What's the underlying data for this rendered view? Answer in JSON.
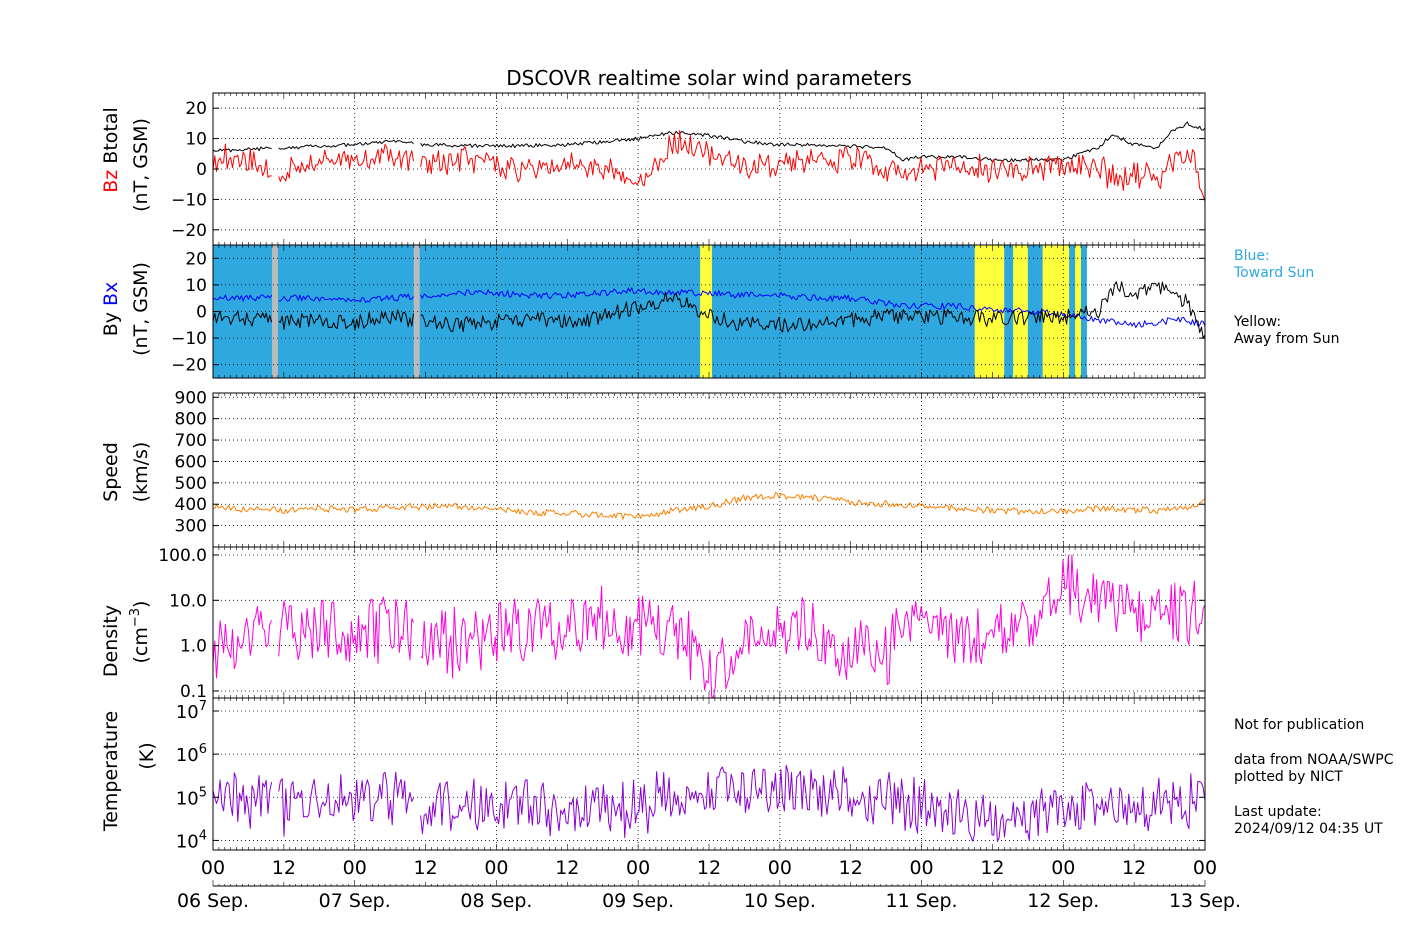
{
  "title": "DSCOVR realtime solar wind parameters",
  "panels": {
    "mag": {
      "label_b": "Btotal",
      "label_a": "Bz",
      "units": "(nT, GSM)"
    },
    "bxy": {
      "label_b": "Bx",
      "label_a": "By",
      "units": "(nT, GSM)"
    },
    "speed": {
      "label": "Speed",
      "units": "(km/s)"
    },
    "density": {
      "label": "Density",
      "units_pre": "(cm",
      "units_sup": "−3",
      "units_post": ")"
    },
    "temp": {
      "label": "Temperature",
      "units": "(K)"
    }
  },
  "legend": {
    "blue_title": "Blue:",
    "blue_text": "Toward Sun",
    "yellow_title": "Yellow:",
    "yellow_text": "Away from Sun"
  },
  "notes": {
    "not_pub": "Not for publication",
    "source1": "data from NOAA/SWPC",
    "source2": "plotted by NICT",
    "update_label": "Last update:",
    "update_value": "2024/09/12 04:35 UT"
  },
  "chart_data": [
    {
      "type": "line",
      "panel": "mag",
      "xlim": [
        0,
        168
      ],
      "ylim": [
        -25,
        25
      ],
      "yticks": [
        -20,
        -10,
        0,
        10,
        20
      ],
      "grid": true,
      "series": [
        {
          "name": "Btotal",
          "color": "#000000",
          "x": [
            0,
            6,
            12,
            18,
            24,
            30,
            36,
            48,
            60,
            66,
            72,
            78,
            84,
            90,
            96,
            102,
            108,
            114,
            117,
            120,
            126,
            132,
            138,
            144,
            150,
            152,
            154,
            156,
            160,
            162,
            165,
            168
          ],
          "y": [
            6,
            6.5,
            7,
            7.5,
            8,
            9,
            8,
            7.5,
            8,
            9,
            10,
            12,
            11,
            9,
            8,
            8,
            7.5,
            7,
            3,
            4,
            4,
            3,
            3,
            3,
            7,
            11,
            10,
            8,
            7,
            12,
            15,
            13
          ]
        },
        {
          "name": "Bz",
          "color": "#ff0000",
          "x": [
            0,
            6,
            10,
            12,
            18,
            24,
            30,
            36,
            42,
            48,
            54,
            60,
            66,
            72,
            76,
            78,
            84,
            90,
            96,
            102,
            108,
            112,
            117,
            120,
            126,
            132,
            138,
            144,
            150,
            152,
            156,
            160,
            162,
            165,
            166,
            168
          ],
          "y": [
            4,
            3,
            0,
            -1,
            3,
            2,
            4,
            1,
            3,
            1,
            -1,
            2,
            0,
            -4,
            3,
            9,
            5,
            0,
            2,
            3,
            4,
            1,
            -1,
            1,
            1,
            0,
            0,
            1,
            1,
            -3,
            -2,
            -3,
            2,
            5,
            4,
            -10
          ]
        }
      ]
    },
    {
      "type": "line",
      "panel": "bxy",
      "xlim": [
        0,
        168
      ],
      "ylim": [
        -25,
        25
      ],
      "yticks": [
        -20,
        -10,
        0,
        10,
        20
      ],
      "grid": true,
      "series": [
        {
          "name": "Bx",
          "color": "#0000ff",
          "x": [
            0,
            6,
            12,
            18,
            24,
            30,
            36,
            42,
            48,
            54,
            60,
            66,
            72,
            78,
            84,
            90,
            96,
            102,
            108,
            114,
            120,
            126,
            132,
            138,
            144,
            150,
            156,
            160,
            164,
            168
          ],
          "y": [
            5,
            5,
            5,
            5,
            4,
            5,
            6,
            7,
            7,
            6,
            6,
            7,
            8,
            7,
            7,
            6,
            6,
            5,
            5,
            3,
            2,
            2,
            1,
            0,
            -1,
            -3,
            -5,
            -4,
            -3,
            -5
          ]
        },
        {
          "name": "By",
          "color": "#000000",
          "x": [
            0,
            6,
            12,
            18,
            24,
            30,
            36,
            42,
            48,
            54,
            60,
            66,
            72,
            78,
            84,
            90,
            96,
            102,
            108,
            114,
            120,
            126,
            132,
            138,
            144,
            150,
            153,
            156,
            160,
            162,
            165,
            168
          ],
          "y": [
            -2,
            -3,
            -4,
            -3,
            -4,
            -2,
            -4,
            -5,
            -4,
            -3,
            -4,
            -2,
            2,
            5,
            -2,
            -5,
            -5,
            -4,
            -3,
            -2,
            -2,
            -2,
            -3,
            -2,
            -2,
            0,
            10,
            6,
            10,
            8,
            3,
            -10
          ]
        }
      ],
      "polarity_bands": {
        "toward_color": "#2ea8df",
        "away_color": "#ffff3c",
        "nodata_color": "#bbbbbb",
        "base": "toward",
        "toward_x_end": 148,
        "away": [
          [
            82.5,
            84.5
          ],
          [
            129,
            134
          ],
          [
            135.5,
            138
          ],
          [
            140.5,
            145
          ],
          [
            146,
            147
          ]
        ],
        "nodata": [
          [
            10,
            11
          ],
          [
            34,
            35
          ]
        ]
      }
    },
    {
      "type": "line",
      "panel": "speed",
      "xlim": [
        0,
        168
      ],
      "ylim": [
        200,
        920
      ],
      "yticks": [
        300,
        400,
        500,
        600,
        700,
        800,
        900
      ],
      "grid": true,
      "series": [
        {
          "name": "Speed",
          "color": "#ff8000",
          "x": [
            0,
            6,
            12,
            18,
            24,
            30,
            36,
            42,
            48,
            54,
            60,
            66,
            72,
            78,
            84,
            90,
            96,
            102,
            108,
            114,
            120,
            126,
            132,
            138,
            144,
            150,
            156,
            160,
            165,
            168
          ],
          "y": [
            390,
            375,
            370,
            380,
            375,
            385,
            390,
            385,
            380,
            360,
            355,
            350,
            345,
            370,
            390,
            430,
            440,
            430,
            410,
            400,
            395,
            380,
            370,
            365,
            370,
            380,
            375,
            370,
            380,
            420
          ]
        }
      ]
    },
    {
      "type": "line",
      "panel": "density",
      "scale": "log",
      "xlim": [
        0,
        168
      ],
      "ylim": [
        0.07,
        150
      ],
      "yticks": [
        0.1,
        1.0,
        10.0,
        100.0
      ],
      "grid": true,
      "series": [
        {
          "name": "Density",
          "color": "#ff00dd",
          "x": [
            0,
            6,
            12,
            18,
            24,
            30,
            36,
            42,
            48,
            54,
            60,
            66,
            72,
            78,
            82,
            84,
            90,
            96,
            102,
            108,
            114,
            120,
            126,
            132,
            136,
            140,
            144,
            150,
            156,
            160,
            165,
            168
          ],
          "y": [
            0.6,
            2.0,
            3.0,
            2.5,
            1.5,
            3.0,
            1.5,
            1.0,
            2.0,
            2.5,
            3.0,
            3.5,
            3.0,
            1.5,
            0.5,
            0.1,
            1.0,
            2.5,
            2.0,
            1.0,
            0.5,
            4.0,
            1.5,
            2.0,
            3.0,
            4.0,
            20.0,
            10.0,
            6.0,
            5.0,
            6.0,
            8.0
          ]
        }
      ]
    },
    {
      "type": "line",
      "panel": "temp",
      "scale": "log",
      "xlim": [
        0,
        168
      ],
      "ylim": [
        6000,
        20000000
      ],
      "yticks": [
        10000,
        100000,
        1000000,
        10000000
      ],
      "grid": true,
      "series": [
        {
          "name": "Temperature",
          "color": "#8a00d4",
          "x": [
            0,
            6,
            12,
            18,
            24,
            30,
            36,
            42,
            48,
            54,
            60,
            66,
            72,
            78,
            84,
            90,
            96,
            102,
            108,
            114,
            120,
            126,
            132,
            138,
            144,
            150,
            156,
            160,
            165,
            168
          ],
          "y": [
            150000,
            80000,
            60000,
            100000,
            80000,
            120000,
            60000,
            70000,
            50000,
            70000,
            40000,
            50000,
            60000,
            90000,
            130000,
            180000,
            160000,
            150000,
            120000,
            80000,
            60000,
            50000,
            30000,
            30000,
            50000,
            60000,
            50000,
            60000,
            80000,
            150000
          ]
        }
      ]
    }
  ],
  "x_axis": {
    "hour_ticks": [
      "00",
      "12",
      "00",
      "12",
      "00",
      "12",
      "00",
      "12",
      "00",
      "12",
      "00",
      "12",
      "00",
      "12",
      "00"
    ],
    "day_ticks": [
      "06 Sep.",
      "07 Sep.",
      "08 Sep.",
      "09 Sep.",
      "10 Sep.",
      "11 Sep.",
      "12 Sep.",
      "13 Sep."
    ]
  }
}
